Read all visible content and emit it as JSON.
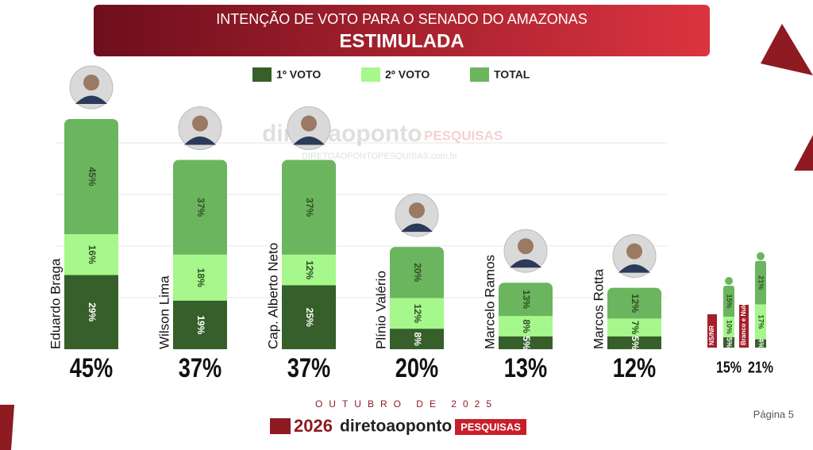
{
  "chart_data": [
    {
      "type": "bar",
      "title": "INTENÇÃO DE VOTO PARA O SENADO DO AMAZONAS",
      "subtitle": "ESTIMULADA",
      "categories": [
        "Eduardo Braga",
        "Wilson Lima",
        "Cap. Alberto Neto",
        "Plínio Valério",
        "Marcelo Ramos",
        "Marcos Rotta"
      ],
      "series": [
        {
          "name": "1º VOTO",
          "color": "#365f2a",
          "values": [
            29,
            19,
            25,
            8,
            5,
            5
          ],
          "value_labels": [
            "29%",
            "19%",
            "25%",
            "8%",
            "5%",
            "5%"
          ]
        },
        {
          "name": "2º VOTO",
          "color": "#a6f78c",
          "values": [
            16,
            18,
            12,
            12,
            8,
            7
          ],
          "value_labels": [
            "16%",
            "18%",
            "12%",
            "12%",
            "8%",
            "7%"
          ]
        },
        {
          "name": "TOTAL",
          "color": "#6bb55f",
          "values": [
            45,
            37,
            37,
            20,
            13,
            12
          ],
          "value_labels": [
            "45%",
            "37%",
            "37%",
            "20%",
            "13%",
            "12%"
          ]
        }
      ]
    },
    {
      "type": "bar",
      "categories": [
        "NS/NR",
        "Branco e Nulo"
      ],
      "series": [
        {
          "name": "1º VOTO",
          "color": "#365f2a",
          "values": [
            5,
            4
          ],
          "value_labels": [
            "5%",
            "4%"
          ]
        },
        {
          "name": "2º VOTO",
          "color": "#a6f78c",
          "values": [
            10,
            17
          ],
          "value_labels": [
            "10%",
            "17%"
          ]
        },
        {
          "name": "TOTAL",
          "color": "#6bb55f",
          "values": [
            15,
            21
          ],
          "value_labels": [
            "15%",
            "21%"
          ]
        }
      ]
    }
  ],
  "watermark": {
    "brand": "diretoaoponto",
    "tag": "PESQUISAS",
    "site": "DIRETOAOPONTOPESQUISAS.com.br"
  },
  "footer": {
    "date": "OUTUBRO DE 2025",
    "year": "2026",
    "brand": "diretoaoponto",
    "tag": "PESQUISAS",
    "page": "Página 5"
  }
}
